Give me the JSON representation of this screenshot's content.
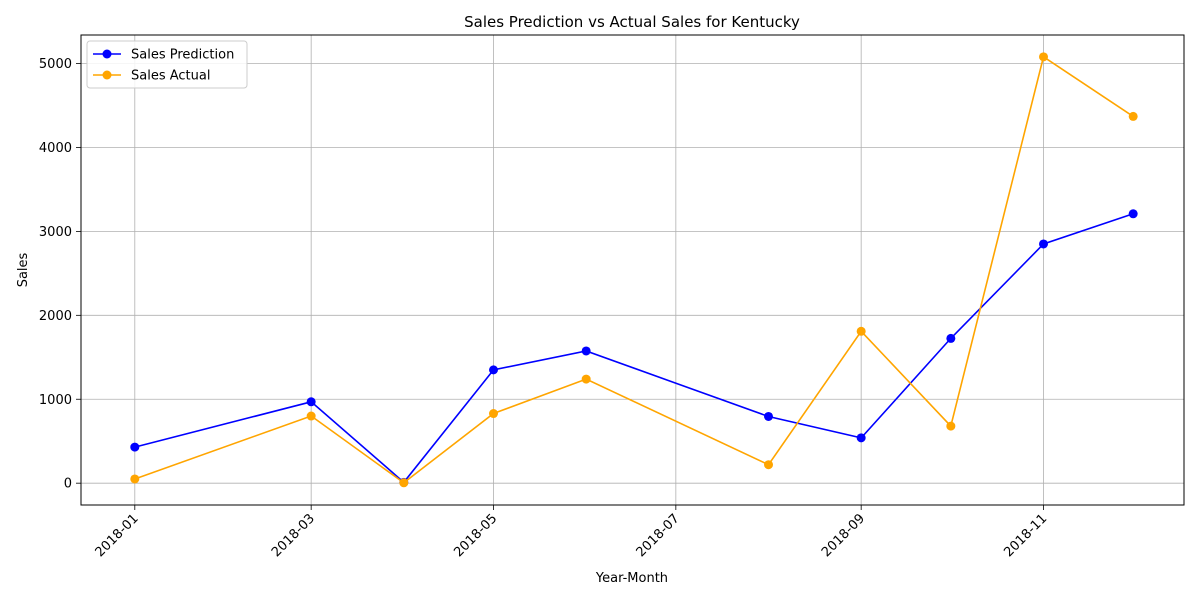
{
  "chart_data": {
    "type": "line",
    "title": "Sales Prediction vs Actual Sales for Kentucky",
    "xlabel": "Year-Month",
    "ylabel": "Sales",
    "x": [
      "2018-01-01",
      "2018-03-01",
      "2018-04-01",
      "2018-05-01",
      "2018-06-01",
      "2018-08-01",
      "2018-09-01",
      "2018-10-01",
      "2018-11-01",
      "2018-12-01"
    ],
    "series": [
      {
        "name": "Sales Prediction",
        "color": "#0000ff",
        "values": [
          430,
          970,
          10,
          1350,
          1575,
          795,
          540,
          1725,
          2850,
          3210
        ]
      },
      {
        "name": "Sales Actual",
        "color": "#ffa500",
        "values": [
          50,
          800,
          5,
          830,
          1240,
          220,
          1810,
          680,
          5080,
          4370
        ]
      }
    ],
    "x_ticks": [
      "2018-01",
      "2018-03",
      "2018-05",
      "2018-07",
      "2018-09",
      "2018-11"
    ],
    "y_ticks": [
      0,
      1000,
      2000,
      3000,
      4000,
      5000
    ],
    "xlim": [
      "2017-12-14",
      "2018-12-18"
    ],
    "ylim": [
      -260,
      5340
    ],
    "grid": true,
    "legend_position": "top-left"
  }
}
